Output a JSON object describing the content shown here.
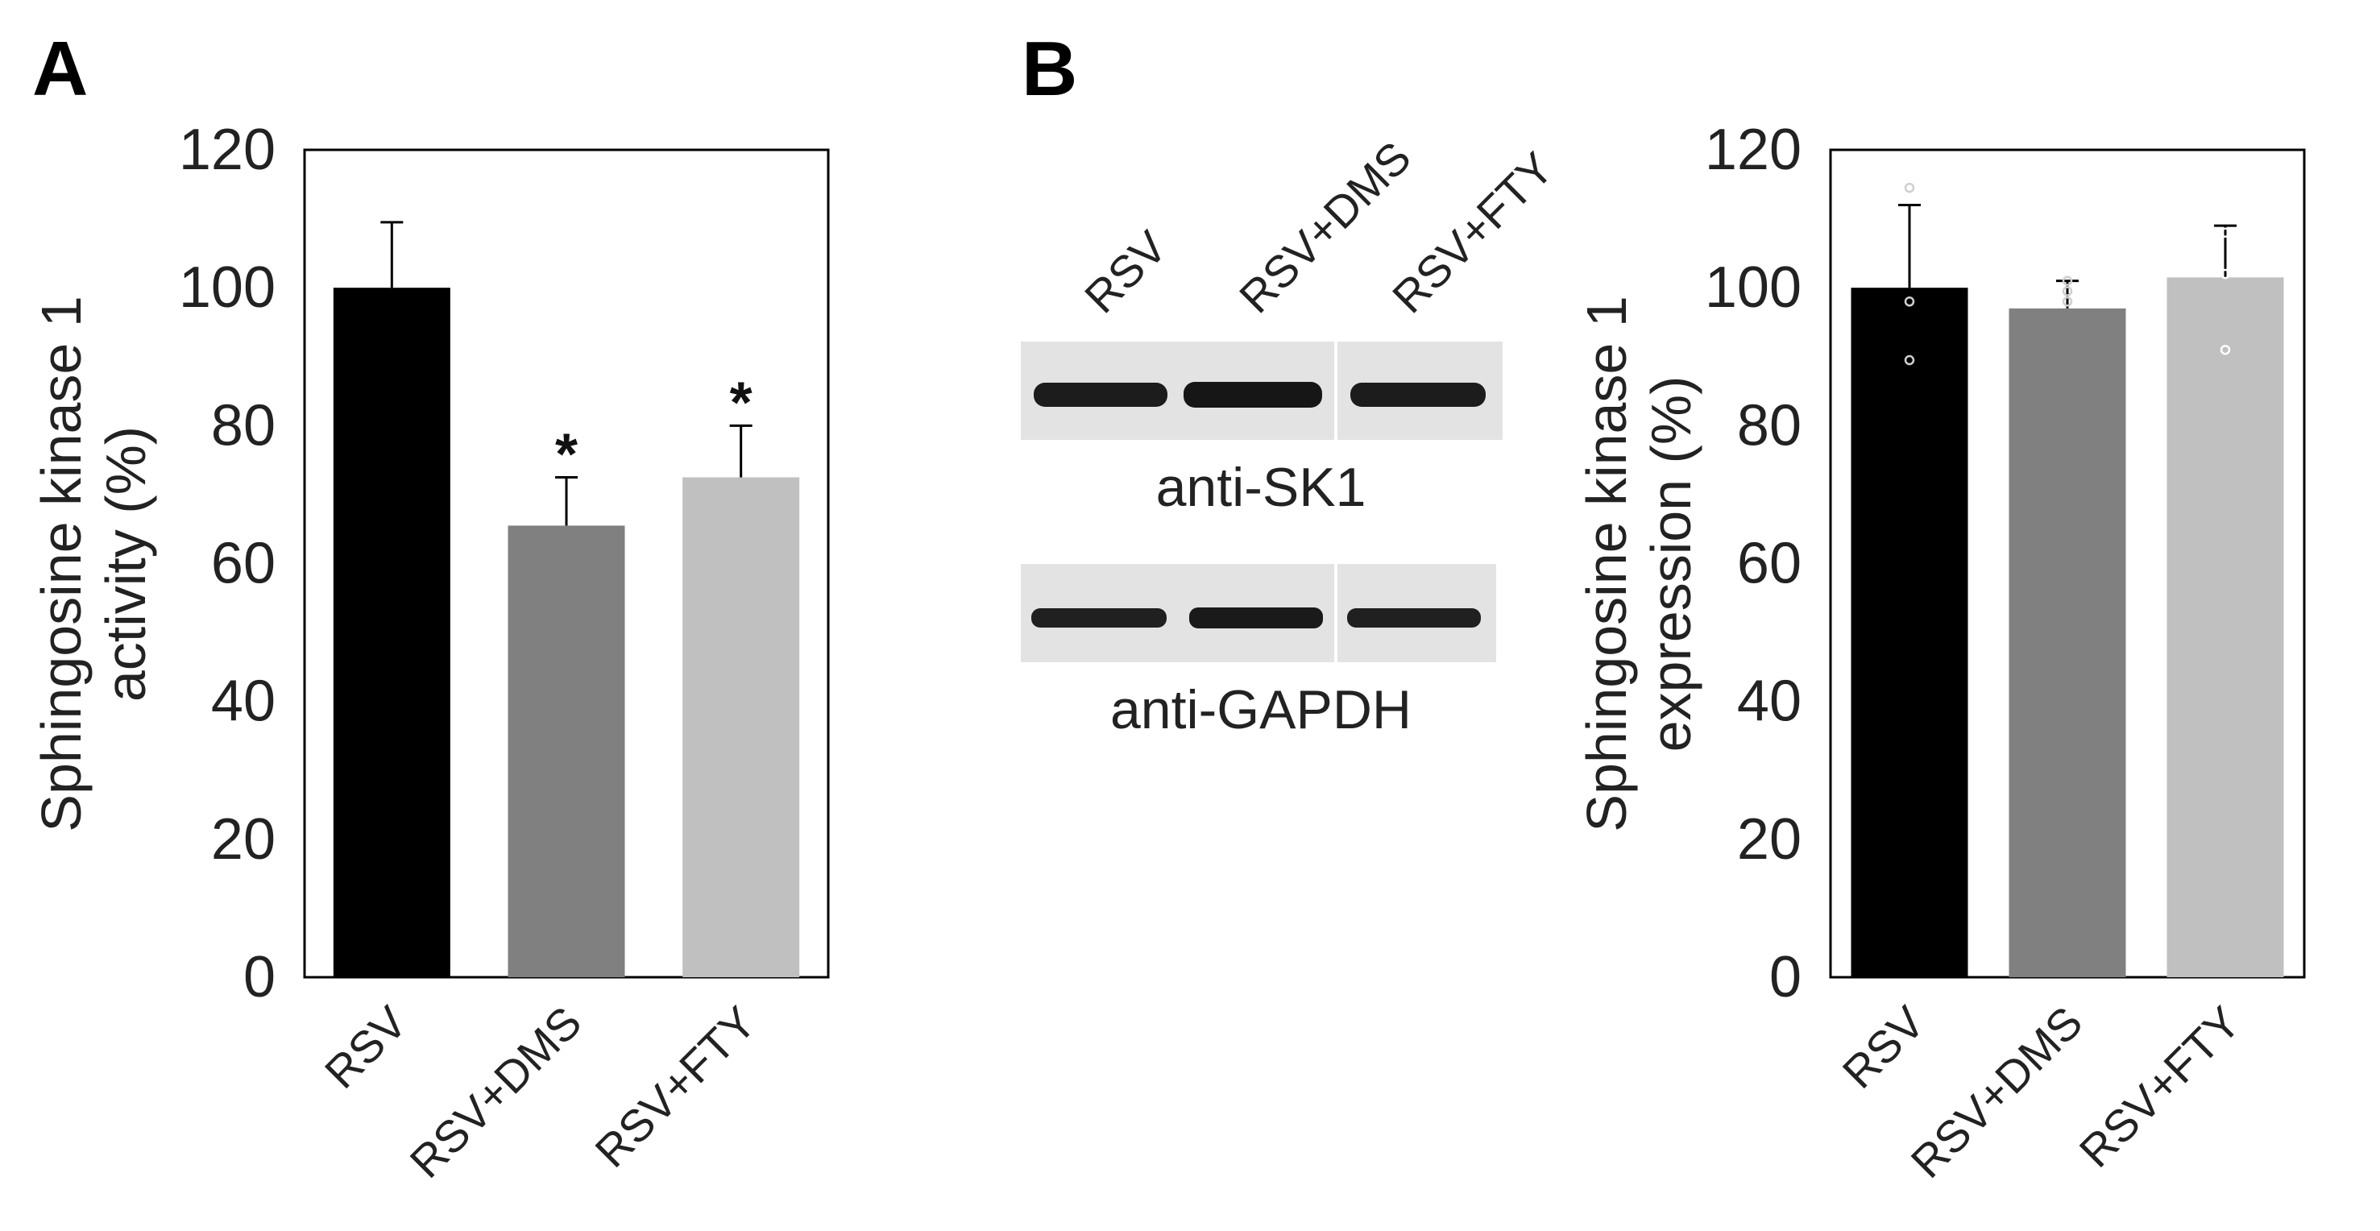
{
  "panel_letters": {
    "a": "A",
    "b": "B"
  },
  "colors": {
    "RSV": "#000000",
    "RSV+DMS": "#808080",
    "RSV+FTY": "#c0c0c0",
    "axis": "#000000"
  },
  "chart_data": [
    {
      "type": "bar",
      "panel": "A",
      "title": "",
      "categories": [
        "RSV",
        "RSV+DMS",
        "RSV+FTY"
      ],
      "values": [
        100,
        65.5,
        72.5
      ],
      "errors": [
        9.5,
        7.0,
        7.5
      ],
      "significance": [
        "",
        "*",
        "*"
      ],
      "ylabel_line1": "Sphingosine kinase 1",
      "ylabel_line2": "activity (%)",
      "xlabel": "",
      "ylim": [
        0,
        120
      ],
      "yticks": [
        "0",
        "20",
        "40",
        "60",
        "80",
        "100",
        "120"
      ],
      "grid": false,
      "legend": "none"
    },
    {
      "type": "bar",
      "panel": "B",
      "title": "",
      "categories": [
        "RSV",
        "RSV+DMS",
        "RSV+FTY"
      ],
      "values": [
        100,
        97,
        101.5
      ],
      "errors": [
        12,
        4,
        7.5
      ],
      "points": [
        [
          114.5,
          98,
          89.5
        ],
        [
          101,
          99.5,
          98
        ],
        [
          108,
          102,
          91
        ]
      ],
      "ylabel_line1": "Sphingosine kinase 1",
      "ylabel_line2": "expression (%)",
      "xlabel": "",
      "ylim": [
        0,
        120
      ],
      "yticks": [
        "0",
        "20",
        "40",
        "60",
        "80",
        "100",
        "120"
      ],
      "grid": false,
      "legend": "none"
    }
  ],
  "western_blot": {
    "lanes": [
      "RSV",
      "RSV+DMS",
      "RSV+FTY"
    ],
    "blots": [
      {
        "label": "anti-SK1"
      },
      {
        "label": "anti-GAPDH"
      }
    ]
  }
}
